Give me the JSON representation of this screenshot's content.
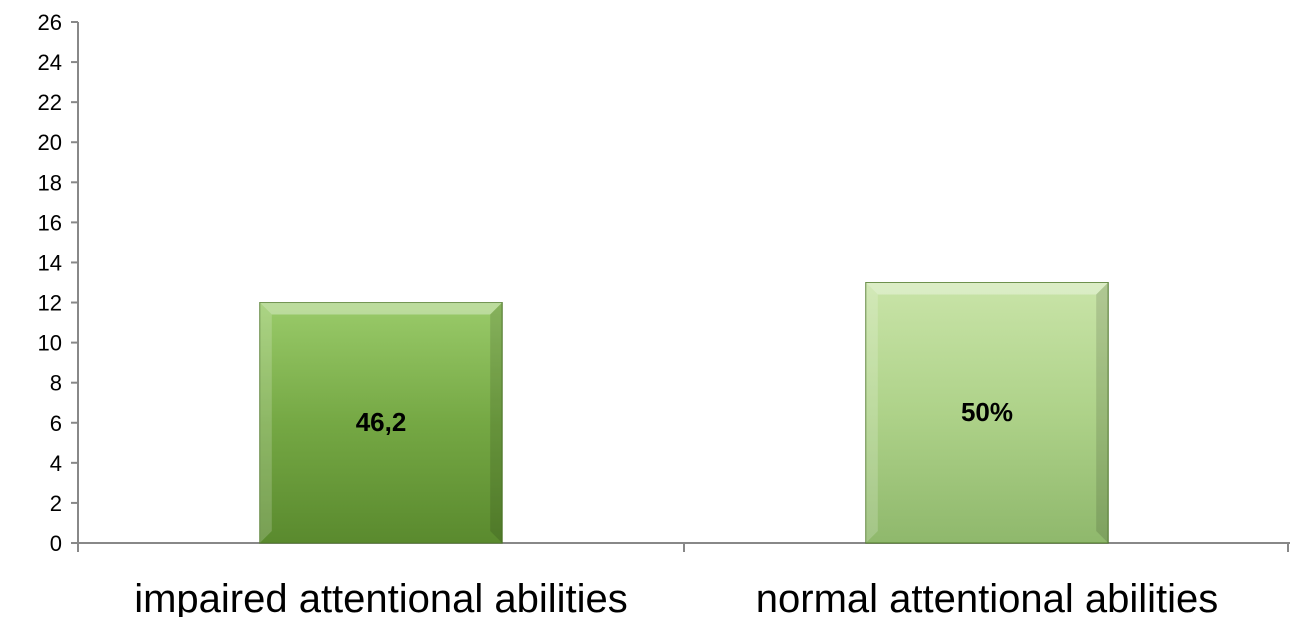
{
  "chart_data": {
    "type": "bar",
    "categories": [
      "impaired attentional abilities",
      "normal attentional abilities"
    ],
    "values": [
      12,
      13
    ],
    "data_labels": [
      "46,2",
      "50%"
    ],
    "ylim": [
      0,
      26
    ],
    "yticks": [
      "0",
      "2",
      "4",
      "6",
      "8",
      "10",
      "12",
      "14",
      "16",
      "18",
      "20",
      "22",
      "24",
      "26"
    ],
    "grid": false,
    "legend": "none",
    "colors": {
      "bars": [
        "#6f9f3c",
        "#a9cf85"
      ],
      "axis": "#888888"
    }
  }
}
